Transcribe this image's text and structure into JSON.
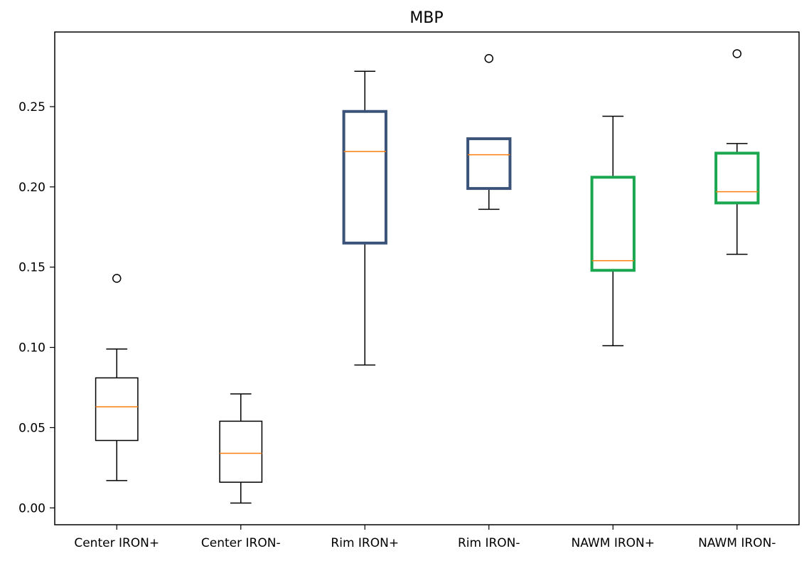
{
  "chart_data": {
    "type": "boxplot",
    "title": "MBP",
    "xlabel": "",
    "ylabel": "",
    "ylim": [
      -0.0105,
      0.2965
    ],
    "yticks": [
      0.0,
      0.05,
      0.1,
      0.15,
      0.2,
      0.25
    ],
    "ytick_labels": [
      "0.00",
      "0.05",
      "0.10",
      "0.15",
      "0.20",
      "0.25"
    ],
    "grid": false,
    "categories": [
      "Center IRON+",
      "Center IRON-",
      "Rim IRON+",
      "Rim IRON-",
      "NAWM IRON+",
      "NAWM IRON-"
    ],
    "boxes": [
      {
        "label": "Center IRON+",
        "whisker_low": 0.017,
        "q1": 0.042,
        "median": 0.063,
        "q3": 0.081,
        "whisker_high": 0.099,
        "outliers": [
          0.143
        ],
        "box_color": "#000000"
      },
      {
        "label": "Center IRON-",
        "whisker_low": 0.003,
        "q1": 0.016,
        "median": 0.034,
        "q3": 0.054,
        "whisker_high": 0.071,
        "outliers": [],
        "box_color": "#000000"
      },
      {
        "label": "Rim IRON+",
        "whisker_low": 0.089,
        "q1": 0.165,
        "median": 0.222,
        "q3": 0.247,
        "whisker_high": 0.272,
        "outliers": [],
        "box_color": "#3b5378"
      },
      {
        "label": "Rim IRON-",
        "whisker_low": 0.186,
        "q1": 0.199,
        "median": 0.22,
        "q3": 0.23,
        "whisker_high": 0.23,
        "outliers": [
          0.28
        ],
        "box_color": "#3b5378"
      },
      {
        "label": "NAWM IRON+",
        "whisker_low": 0.101,
        "q1": 0.148,
        "median": 0.154,
        "q3": 0.206,
        "whisker_high": 0.244,
        "outliers": [],
        "box_color": "#1aa750"
      },
      {
        "label": "NAWM IRON-",
        "whisker_low": 0.158,
        "q1": 0.19,
        "median": 0.197,
        "q3": 0.221,
        "whisker_high": 0.227,
        "outliers": [
          0.283
        ],
        "box_color": "#1aa750"
      }
    ],
    "median_color": "#ff7f0e"
  }
}
